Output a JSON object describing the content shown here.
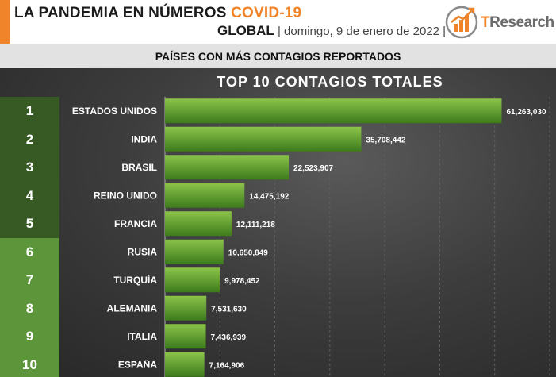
{
  "header": {
    "title_main": "LA PANDEMIA EN NÚMEROS",
    "title_accent": "COVID-19",
    "subtitle_region": "GLOBAL",
    "subtitle_sep1": " | ",
    "subtitle_date": "domingo, 9 de enero de 2022",
    "subtitle_sep2": " |",
    "logo_t": "T",
    "logo_rest": "Research"
  },
  "section_title": "PAÍSES CON MÁS CONTAGIOS REPORTADOS",
  "colors": {
    "accent": "#f0842a",
    "rank_top5": "#375a25",
    "rank_rest": "#5c953a",
    "bar_light": "#8bc34a",
    "bar_dark": "#3d7b1c"
  },
  "ranks": [
    "1",
    "2",
    "3",
    "4",
    "5",
    "6",
    "7",
    "8",
    "9",
    "10"
  ],
  "chart_data": {
    "type": "bar",
    "orientation": "horizontal",
    "title": "TOP 10 CONTAGIOS TOTALES",
    "categories": [
      "ESTADOS UNIDOS",
      "INDIA",
      "BRASIL",
      "REINO UNIDO",
      "FRANCIA",
      "RUSIA",
      "TURQUÍA",
      "ALEMANIA",
      "ITALIA",
      "ESPAÑA"
    ],
    "values": [
      61263030,
      35708442,
      22523907,
      14475192,
      12111218,
      10650849,
      9978452,
      7531630,
      7436939,
      7164906
    ],
    "value_labels": [
      "61,263,030",
      "35,708,442",
      "22,523,907",
      "14,475,192",
      "12,111,218",
      "10,650,849",
      "9,978,452",
      "7,531,630",
      "7,436,939",
      "7,164,906"
    ],
    "xlim": [
      0,
      70000000
    ],
    "grid": true,
    "legend": "none"
  }
}
